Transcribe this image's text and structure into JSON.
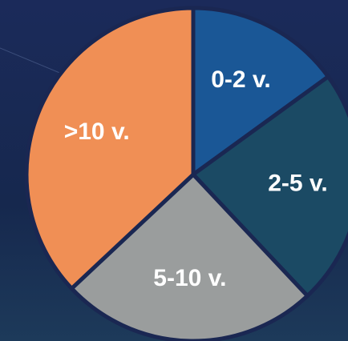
{
  "chart_data": {
    "type": "pie",
    "categories": [
      "0-2 v.",
      "2-5 v.",
      "5-10 v.",
      ">10 v."
    ],
    "values": [
      15,
      23,
      25,
      37
    ],
    "colors": [
      "#1a5796",
      "#1b4a64",
      "#9a9d9d",
      "#f08f55"
    ]
  }
}
